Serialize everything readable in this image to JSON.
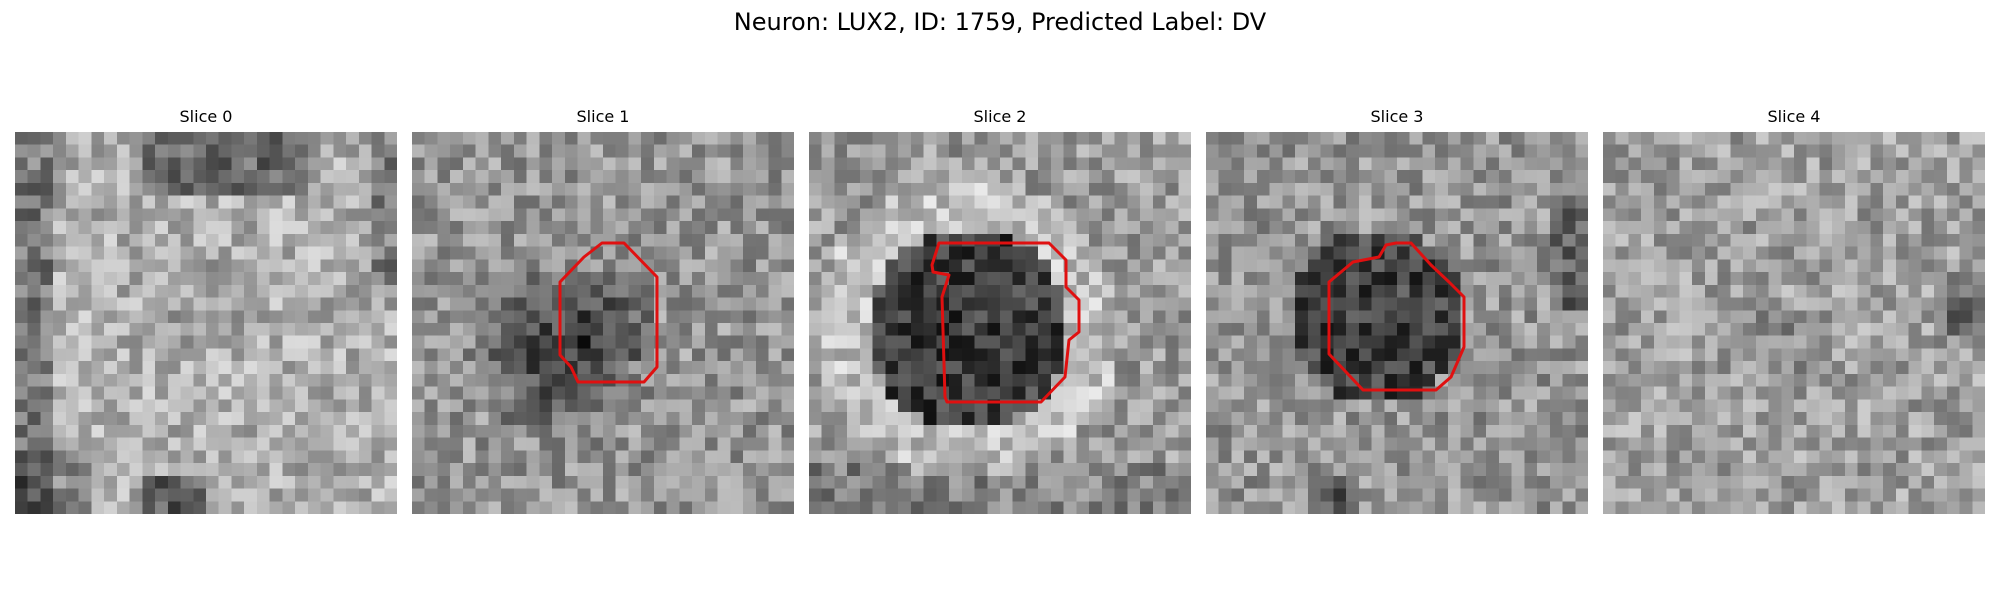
{
  "figure": {
    "title": "Neuron: LUX2, ID: 1759, Predicted Label: DV"
  },
  "panels": [
    {
      "title": "Slice 0",
      "has_contour": false
    },
    {
      "title": "Slice 1",
      "has_contour": true
    },
    {
      "title": "Slice 2",
      "has_contour": true
    },
    {
      "title": "Slice 3",
      "has_contour": true
    },
    {
      "title": "Slice 4",
      "has_contour": false
    }
  ],
  "colors": {
    "contour": "#e01010",
    "background": "#ffffff",
    "colormap": "grayscale"
  }
}
